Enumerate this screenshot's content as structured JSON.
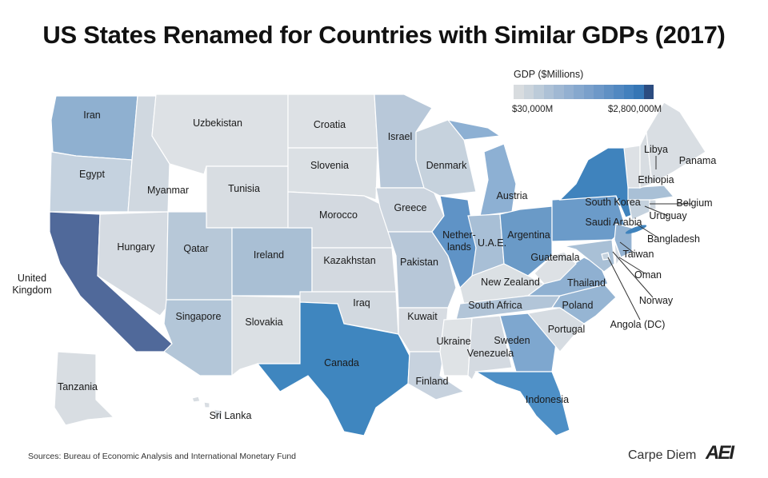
{
  "title": "US States Renamed for Countries with Similar GDPs (2017)",
  "legend": {
    "title": "GDP ($Millions)",
    "min_label": "$30,000M",
    "max_label": "$2,800,000M",
    "colors": [
      "#d8dcdf",
      "#cbd4dc",
      "#bccbd9",
      "#adc1d6",
      "#a0b8d3",
      "#93b0d1",
      "#86a8ce",
      "#7aa0cb",
      "#6d98c8",
      "#5f90c4",
      "#5188c1",
      "#4280bd",
      "#3576b5",
      "#2c4c80"
    ]
  },
  "regions": [
    {
      "label": "Iran",
      "color": "#8fb0d0"
    },
    {
      "label": "Egypt",
      "color": "#c5d2df"
    },
    {
      "label": "United Kingdom",
      "color": "#50699a"
    },
    {
      "label": "Myanmar",
      "color": "#d0d8e0"
    },
    {
      "label": "Hungary",
      "color": "#d5dbe2"
    },
    {
      "label": "Uzbekistan",
      "color": "#dde1e5"
    },
    {
      "label": "Tunisia",
      "color": "#d8dde2"
    },
    {
      "label": "Qatar",
      "color": "#b7c8d8"
    },
    {
      "label": "Singapore",
      "color": "#b3c6d8"
    },
    {
      "label": "Ireland",
      "color": "#a9bfd4"
    },
    {
      "label": "Slovakia",
      "color": "#dbe0e4"
    },
    {
      "label": "Croatia",
      "color": "#dde1e5"
    },
    {
      "label": "Slovenia",
      "color": "#dbe0e4"
    },
    {
      "label": "Morocco",
      "color": "#d3d9e0"
    },
    {
      "label": "Kazakhstan",
      "color": "#d3d9e0"
    },
    {
      "label": "Iraq",
      "color": "#d2d9e0"
    },
    {
      "label": "Canada",
      "color": "#3f86bf"
    },
    {
      "label": "Israel",
      "color": "#b8c8d9"
    },
    {
      "label": "Greece",
      "color": "#ccd5df"
    },
    {
      "label": "Pakistan",
      "color": "#b7c7d8"
    },
    {
      "label": "Kuwait",
      "color": "#d7dce2"
    },
    {
      "label": "Finland",
      "color": "#c7d2de"
    },
    {
      "label": "Denmark",
      "color": "#c6d2dd"
    },
    {
      "label": "Netherlands",
      "color": "#5f93c6"
    },
    {
      "label": "Austria",
      "color": "#8db0d3"
    },
    {
      "label": "U.A.E.",
      "color": "#a8bfd6"
    },
    {
      "label": "Argentina",
      "color": "#6a9ac7"
    },
    {
      "label": "New Zealand",
      "color": "#dbe0e4"
    },
    {
      "label": "South Africa",
      "color": "#b2c5d8"
    },
    {
      "label": "Ukraine",
      "color": "#dfe3e6"
    },
    {
      "label": "Venezuela",
      "color": "#d4dae1"
    },
    {
      "label": "Sweden",
      "color": "#7ea7cf"
    },
    {
      "label": "Indonesia",
      "color": "#4d8fc6"
    },
    {
      "label": "Portugal",
      "color": "#d6dce2"
    },
    {
      "label": "Poland",
      "color": "#96b5d3"
    },
    {
      "label": "Thailand",
      "color": "#8fb0d1"
    },
    {
      "label": "Guatemala",
      "color": "#dde1e5"
    },
    {
      "label": "Saudi Arabia",
      "color": "#6b9bc9"
    },
    {
      "label": "South Korea",
      "color": "#3f83bd"
    },
    {
      "label": "Taiwan",
      "color": "#94b3d2"
    },
    {
      "label": "Norway",
      "color": "#a9c0d6"
    },
    {
      "label": "Oman",
      "color": "#d4dae1"
    },
    {
      "label": "Bangladesh",
      "color": "#c5d2de"
    },
    {
      "label": "Uruguay",
      "color": "#cfd7df"
    },
    {
      "label": "Belgium",
      "color": "#a9c0d6"
    },
    {
      "label": "Libya",
      "color": "#dde1e5"
    },
    {
      "label": "Ethiopia",
      "color": "#d8dde2"
    },
    {
      "label": "Panama",
      "color": "#d9dee3"
    },
    {
      "label": "Tanzania",
      "color": "#d8dde2"
    },
    {
      "label": "Sri Lanka",
      "color": "#d8dde2"
    },
    {
      "label": "Angola (DC)",
      "color": "#c5d2de"
    }
  ],
  "footer": {
    "source": "Sources: Bureau of Economic Analysis and International Monetary Fund",
    "brand": "Carpe Diem",
    "logo": "AEI"
  }
}
